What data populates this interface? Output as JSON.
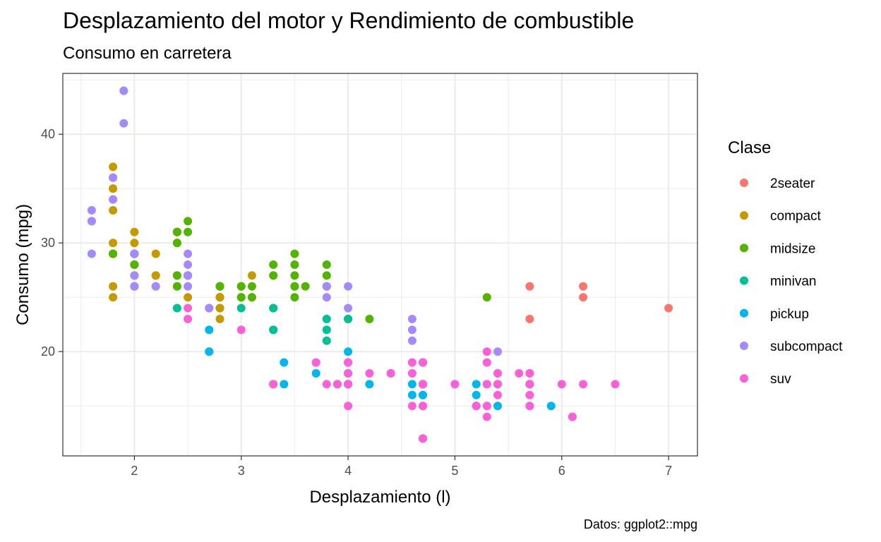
{
  "chart_data": {
    "type": "scatter",
    "title": "Desplazamiento del motor y Rendimiento de combustible",
    "subtitle": "Consumo en carretera",
    "caption": "Datos: ggplot2::mpg",
    "xlabel": "Desplazamiento (l)",
    "ylabel": "Consumo (mpg)",
    "xlim": [
      1.33,
      7.27
    ],
    "ylim": [
      10.4,
      45.6
    ],
    "xticks": [
      2,
      3,
      4,
      5,
      6,
      7
    ],
    "yticks": [
      20,
      30,
      40
    ],
    "grid": true,
    "legend": {
      "title": "Clase",
      "position": "right"
    },
    "series": [
      {
        "name": "2seater",
        "color": "#F8766D",
        "points": [
          [
            5.7,
            26
          ],
          [
            5.7,
            23
          ],
          [
            6.2,
            26
          ],
          [
            6.2,
            25
          ],
          [
            7.0,
            24
          ]
        ]
      },
      {
        "name": "compact",
        "color": "#C49A00",
        "points": [
          [
            1.8,
            29
          ],
          [
            1.8,
            29
          ],
          [
            2.0,
            31
          ],
          [
            2.0,
            30
          ],
          [
            2.8,
            26
          ],
          [
            2.8,
            26
          ],
          [
            3.1,
            27
          ],
          [
            1.8,
            26
          ],
          [
            1.8,
            25
          ],
          [
            2.0,
            28
          ],
          [
            2.0,
            29
          ],
          [
            2.8,
            25
          ],
          [
            2.8,
            25
          ],
          [
            3.1,
            25
          ],
          [
            2.2,
            26
          ],
          [
            2.2,
            27
          ],
          [
            2.4,
            31
          ],
          [
            2.4,
            30
          ],
          [
            3.0,
            26
          ],
          [
            3.3,
            27
          ],
          [
            1.8,
            33
          ],
          [
            1.8,
            35
          ],
          [
            1.8,
            37
          ],
          [
            1.8,
            35
          ],
          [
            1.8,
            29
          ],
          [
            2.0,
            29
          ],
          [
            2.0,
            29
          ],
          [
            2.0,
            26
          ],
          [
            2.8,
            25
          ],
          [
            2.8,
            23
          ],
          [
            2.0,
            28
          ],
          [
            2.0,
            29
          ],
          [
            2.5,
            27
          ],
          [
            2.5,
            27
          ],
          [
            2.2,
            29
          ],
          [
            2.2,
            27
          ],
          [
            2.4,
            31
          ],
          [
            2.4,
            31
          ],
          [
            2.4,
            27
          ],
          [
            2.5,
            25
          ],
          [
            2.5,
            27
          ],
          [
            1.8,
            30
          ],
          [
            2.8,
            24
          ],
          [
            2.8,
            24
          ],
          [
            2.0,
            29
          ]
        ]
      },
      {
        "name": "midsize",
        "color": "#53B400",
        "points": [
          [
            2.4,
            30
          ],
          [
            2.4,
            26
          ],
          [
            3.1,
            26
          ],
          [
            3.5,
            29
          ],
          [
            3.6,
            26
          ],
          [
            2.4,
            27
          ],
          [
            3.0,
            25
          ],
          [
            3.3,
            28
          ],
          [
            3.3,
            27
          ],
          [
            3.5,
            26
          ],
          [
            3.8,
            28
          ],
          [
            3.8,
            26
          ],
          [
            3.8,
            26
          ],
          [
            5.3,
            25
          ],
          [
            2.4,
            31
          ],
          [
            2.4,
            26
          ],
          [
            3.1,
            25
          ],
          [
            3.5,
            28
          ],
          [
            3.5,
            27
          ],
          [
            3.5,
            25
          ],
          [
            2.0,
            28
          ],
          [
            2.0,
            27
          ],
          [
            2.0,
            29
          ],
          [
            2.0,
            29
          ],
          [
            2.8,
            26
          ],
          [
            1.8,
            29
          ],
          [
            2.5,
            31
          ],
          [
            2.5,
            32
          ],
          [
            2.5,
            27
          ],
          [
            2.8,
            26
          ],
          [
            2.8,
            26
          ],
          [
            3.0,
            25
          ],
          [
            3.0,
            26
          ],
          [
            3.5,
            26
          ],
          [
            3.8,
            27
          ],
          [
            4.0,
            23
          ],
          [
            4.2,
            23
          ],
          [
            2.4,
            30
          ],
          [
            3.0,
            26
          ]
        ]
      },
      {
        "name": "minivan",
        "color": "#00C094",
        "points": [
          [
            2.4,
            24
          ],
          [
            3.0,
            24
          ],
          [
            3.3,
            22
          ],
          [
            3.3,
            22
          ],
          [
            3.3,
            24
          ],
          [
            3.3,
            24
          ],
          [
            3.3,
            17
          ],
          [
            3.8,
            22
          ],
          [
            3.8,
            21
          ],
          [
            3.8,
            23
          ],
          [
            4.0,
            23
          ]
        ]
      },
      {
        "name": "pickup",
        "color": "#00B6EB",
        "points": [
          [
            2.7,
            20
          ],
          [
            2.7,
            20
          ],
          [
            2.7,
            22
          ],
          [
            3.7,
            19
          ],
          [
            3.7,
            18
          ],
          [
            3.9,
            17
          ],
          [
            3.9,
            17
          ],
          [
            4.7,
            17
          ],
          [
            4.7,
            17
          ],
          [
            4.7,
            16
          ],
          [
            5.2,
            15
          ],
          [
            5.2,
            16
          ],
          [
            5.7,
            17
          ],
          [
            5.9,
            15
          ],
          [
            4.7,
            12
          ],
          [
            4.7,
            17
          ],
          [
            4.7,
            16
          ],
          [
            4.7,
            19
          ],
          [
            5.2,
            17
          ],
          [
            5.2,
            15
          ],
          [
            5.7,
            17
          ],
          [
            4.6,
            16
          ],
          [
            4.6,
            17
          ],
          [
            5.4,
            15
          ],
          [
            3.4,
            17
          ],
          [
            3.4,
            19
          ],
          [
            4.0,
            17
          ],
          [
            4.0,
            20
          ],
          [
            4.0,
            17
          ],
          [
            4.0,
            18
          ],
          [
            4.7,
            17
          ],
          [
            4.7,
            19
          ],
          [
            4.2,
            17
          ]
        ]
      },
      {
        "name": "subcompact",
        "color": "#A58AFF",
        "points": [
          [
            1.8,
            36
          ],
          [
            1.8,
            34
          ],
          [
            2.0,
            27
          ],
          [
            2.0,
            26
          ],
          [
            3.8,
            26
          ],
          [
            3.8,
            25
          ],
          [
            4.0,
            26
          ],
          [
            4.0,
            24
          ],
          [
            4.6,
            21
          ],
          [
            4.6,
            22
          ],
          [
            4.6,
            23
          ],
          [
            5.4,
            20
          ],
          [
            1.6,
            33
          ],
          [
            1.6,
            32
          ],
          [
            1.6,
            32
          ],
          [
            1.6,
            29
          ],
          [
            1.6,
            32
          ],
          [
            1.8,
            34
          ],
          [
            1.8,
            36
          ],
          [
            1.8,
            36
          ],
          [
            2.0,
            29
          ],
          [
            2.0,
            26
          ],
          [
            2.2,
            26
          ],
          [
            2.5,
            29
          ],
          [
            2.5,
            28
          ],
          [
            2.5,
            27
          ],
          [
            2.5,
            26
          ],
          [
            2.7,
            24
          ],
          [
            2.7,
            24
          ],
          [
            1.9,
            44
          ],
          [
            1.9,
            44
          ],
          [
            1.9,
            41
          ],
          [
            2.0,
            29
          ],
          [
            2.0,
            26
          ]
        ]
      },
      {
        "name": "suv",
        "color": "#FB61D7",
        "points": [
          [
            5.7,
            17
          ],
          [
            5.7,
            17
          ],
          [
            6.2,
            17
          ],
          [
            6.5,
            17
          ],
          [
            4.7,
            17
          ],
          [
            4.7,
            17
          ],
          [
            4.7,
            19
          ],
          [
            5.2,
            15
          ],
          [
            5.2,
            15
          ],
          [
            5.7,
            16
          ],
          [
            6.1,
            14
          ],
          [
            5.3,
            15
          ],
          [
            5.3,
            15
          ],
          [
            5.3,
            14
          ],
          [
            5.3,
            17
          ],
          [
            5.7,
            15
          ],
          [
            6.0,
            17
          ],
          [
            4.7,
            15
          ],
          [
            4.7,
            15
          ],
          [
            5.7,
            18
          ],
          [
            4.0,
            18
          ],
          [
            4.0,
            17
          ],
          [
            4.6,
            18
          ],
          [
            5.0,
            17
          ],
          [
            4.2,
            18
          ],
          [
            4.4,
            18
          ],
          [
            4.6,
            19
          ],
          [
            5.4,
            18
          ],
          [
            5.4,
            17
          ],
          [
            5.4,
            16
          ],
          [
            4.0,
            19
          ],
          [
            4.0,
            15
          ],
          [
            4.6,
            15
          ],
          [
            3.3,
            17
          ],
          [
            3.8,
            17
          ],
          [
            3.0,
            22
          ],
          [
            3.7,
            19
          ],
          [
            3.9,
            17
          ],
          [
            4.7,
            12
          ],
          [
            4.7,
            12
          ],
          [
            4.7,
            17
          ],
          [
            5.7,
            18
          ],
          [
            5.7,
            15
          ],
          [
            6.1,
            14
          ],
          [
            5.3,
            19
          ],
          [
            5.3,
            20
          ],
          [
            5.3,
            17
          ],
          [
            2.5,
            23
          ],
          [
            2.5,
            24
          ],
          [
            5.6,
            18
          ],
          [
            5.4,
            17
          ],
          [
            5.4,
            18
          ],
          [
            5.4,
            17
          ],
          [
            4.6,
            19
          ],
          [
            4.6,
            18
          ],
          [
            4.4,
            18
          ],
          [
            5.0,
            17
          ],
          [
            4.0,
            17
          ],
          [
            4.0,
            17
          ],
          [
            4.7,
            15
          ],
          [
            4.7,
            19
          ],
          [
            4.0,
            19
          ],
          [
            3.3,
            17
          ]
        ]
      }
    ]
  }
}
